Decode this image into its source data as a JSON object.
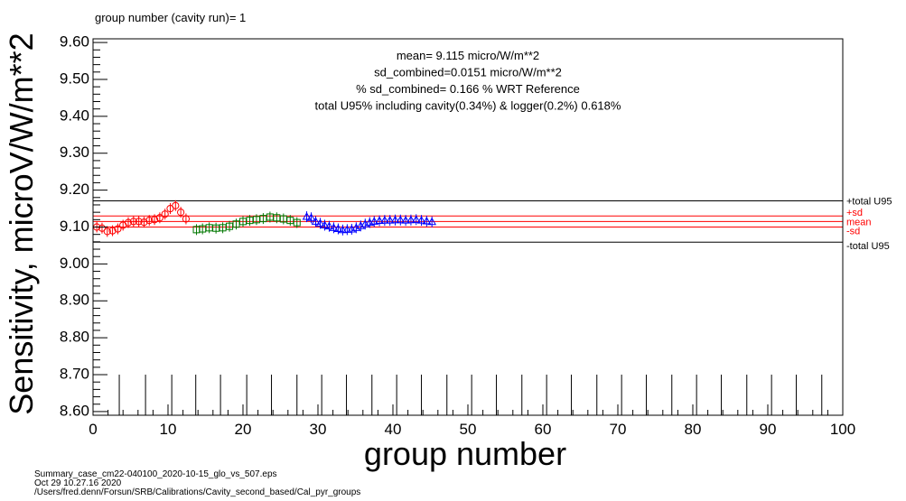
{
  "chart_data": {
    "type": "scatter",
    "title": "group number (cavity run)=  1",
    "xlabel": "group number",
    "ylabel": "Sensitivity, microV/W/m**2",
    "xlim": [
      0,
      100
    ],
    "ylim": [
      8.59,
      9.61
    ],
    "x_ticks": [
      0,
      10,
      20,
      30,
      40,
      50,
      60,
      70,
      80,
      90,
      100
    ],
    "y_ticks": [
      8.6,
      8.7,
      8.8,
      8.9,
      9.0,
      9.1,
      9.2,
      9.3,
      9.4,
      9.5,
      9.6
    ],
    "y_tick_labels": [
      "8.60",
      "8.70",
      "8.80",
      "8.90",
      "9.00",
      "9.10",
      "9.20",
      "9.30",
      "9.40",
      "9.50",
      "9.60"
    ],
    "grid": false,
    "stats_text": [
      "mean= 9.115 micro/W/m**2",
      "sd_combined=0.0151 micro/W/m**2",
      "% sd_combined= 0.166 % WRT Reference",
      "total U95% including cavity(0.34%) & logger(0.2%) 0.618%"
    ],
    "reference_lines": [
      {
        "label": "+total U95",
        "y": 9.171,
        "color": "#000000"
      },
      {
        "label": "+sd",
        "y": 9.13,
        "color": "#ff0000"
      },
      {
        "label": "mean",
        "y": 9.115,
        "color": "#ff0000"
      },
      {
        "label": "-sd",
        "y": 9.1,
        "color": "#ff0000"
      },
      {
        "label": "-total U95",
        "y": 9.059,
        "color": "#000000"
      }
    ],
    "markers": {
      "x": [
        3.5,
        7,
        10.5,
        13.7,
        17,
        20.5,
        23.8,
        27.2,
        30.5,
        33.8,
        37.2,
        40.5,
        43.8,
        47.2,
        50.5,
        53.8,
        57.2,
        60.5,
        63.8,
        67.2,
        70.5,
        73.8,
        77.2,
        80.5,
        83.8,
        87.2,
        90.5,
        93.8,
        97.2
      ],
      "y_bottom": 8.59,
      "y_top": 8.7
    },
    "series": [
      {
        "color": "#ff0000",
        "marker": "circle",
        "x": [
          0.5,
          1.2,
          1.9,
          2.6,
          3.3,
          4.0,
          4.7,
          5.4,
          6.1,
          6.8,
          7.5,
          8.2,
          8.9,
          9.6,
          10.3,
          11.0,
          11.7,
          12.4
        ],
        "y": [
          9.1,
          9.097,
          9.088,
          9.09,
          9.095,
          9.105,
          9.112,
          9.115,
          9.115,
          9.113,
          9.118,
          9.12,
          9.125,
          9.135,
          9.15,
          9.158,
          9.14,
          9.122
        ]
      },
      {
        "color": "#007700",
        "marker": "square",
        "x": [
          13.8,
          14.6,
          15.5,
          16.4,
          17.3,
          18.2,
          19.1,
          20.0,
          20.9,
          21.8,
          22.7,
          23.6,
          24.5,
          25.4,
          26.3,
          27.2
        ],
        "y": [
          9.093,
          9.095,
          9.098,
          9.097,
          9.098,
          9.102,
          9.108,
          9.115,
          9.118,
          9.12,
          9.123,
          9.127,
          9.125,
          9.122,
          9.118,
          9.112
        ]
      },
      {
        "color": "#0000ff",
        "marker": "triangle",
        "x": [
          28.5,
          29.1,
          29.7,
          30.3,
          30.9,
          31.5,
          32.1,
          32.7,
          33.3,
          33.9,
          34.5,
          35.1,
          35.7,
          36.3,
          36.9,
          37.5,
          38.2,
          38.9,
          39.6,
          40.3,
          41.0,
          41.7,
          42.4,
          43.1,
          43.8,
          44.5,
          45.2
        ],
        "y": [
          9.128,
          9.125,
          9.115,
          9.11,
          9.105,
          9.102,
          9.098,
          9.095,
          9.092,
          9.093,
          9.094,
          9.098,
          9.103,
          9.108,
          9.112,
          9.115,
          9.117,
          9.118,
          9.118,
          9.119,
          9.119,
          9.118,
          9.119,
          9.12,
          9.118,
          9.116,
          9.114
        ]
      }
    ]
  },
  "footer": {
    "file": "Summary_case_cm22-040100_2020-10-15_glo_vs_507.eps",
    "date": "Oct 29 10.27.16 2020",
    "path": "/Users/fred.denn/Forsun/SRB/Calibrations/Cavity_second_based/Cal_pyr_groups"
  }
}
